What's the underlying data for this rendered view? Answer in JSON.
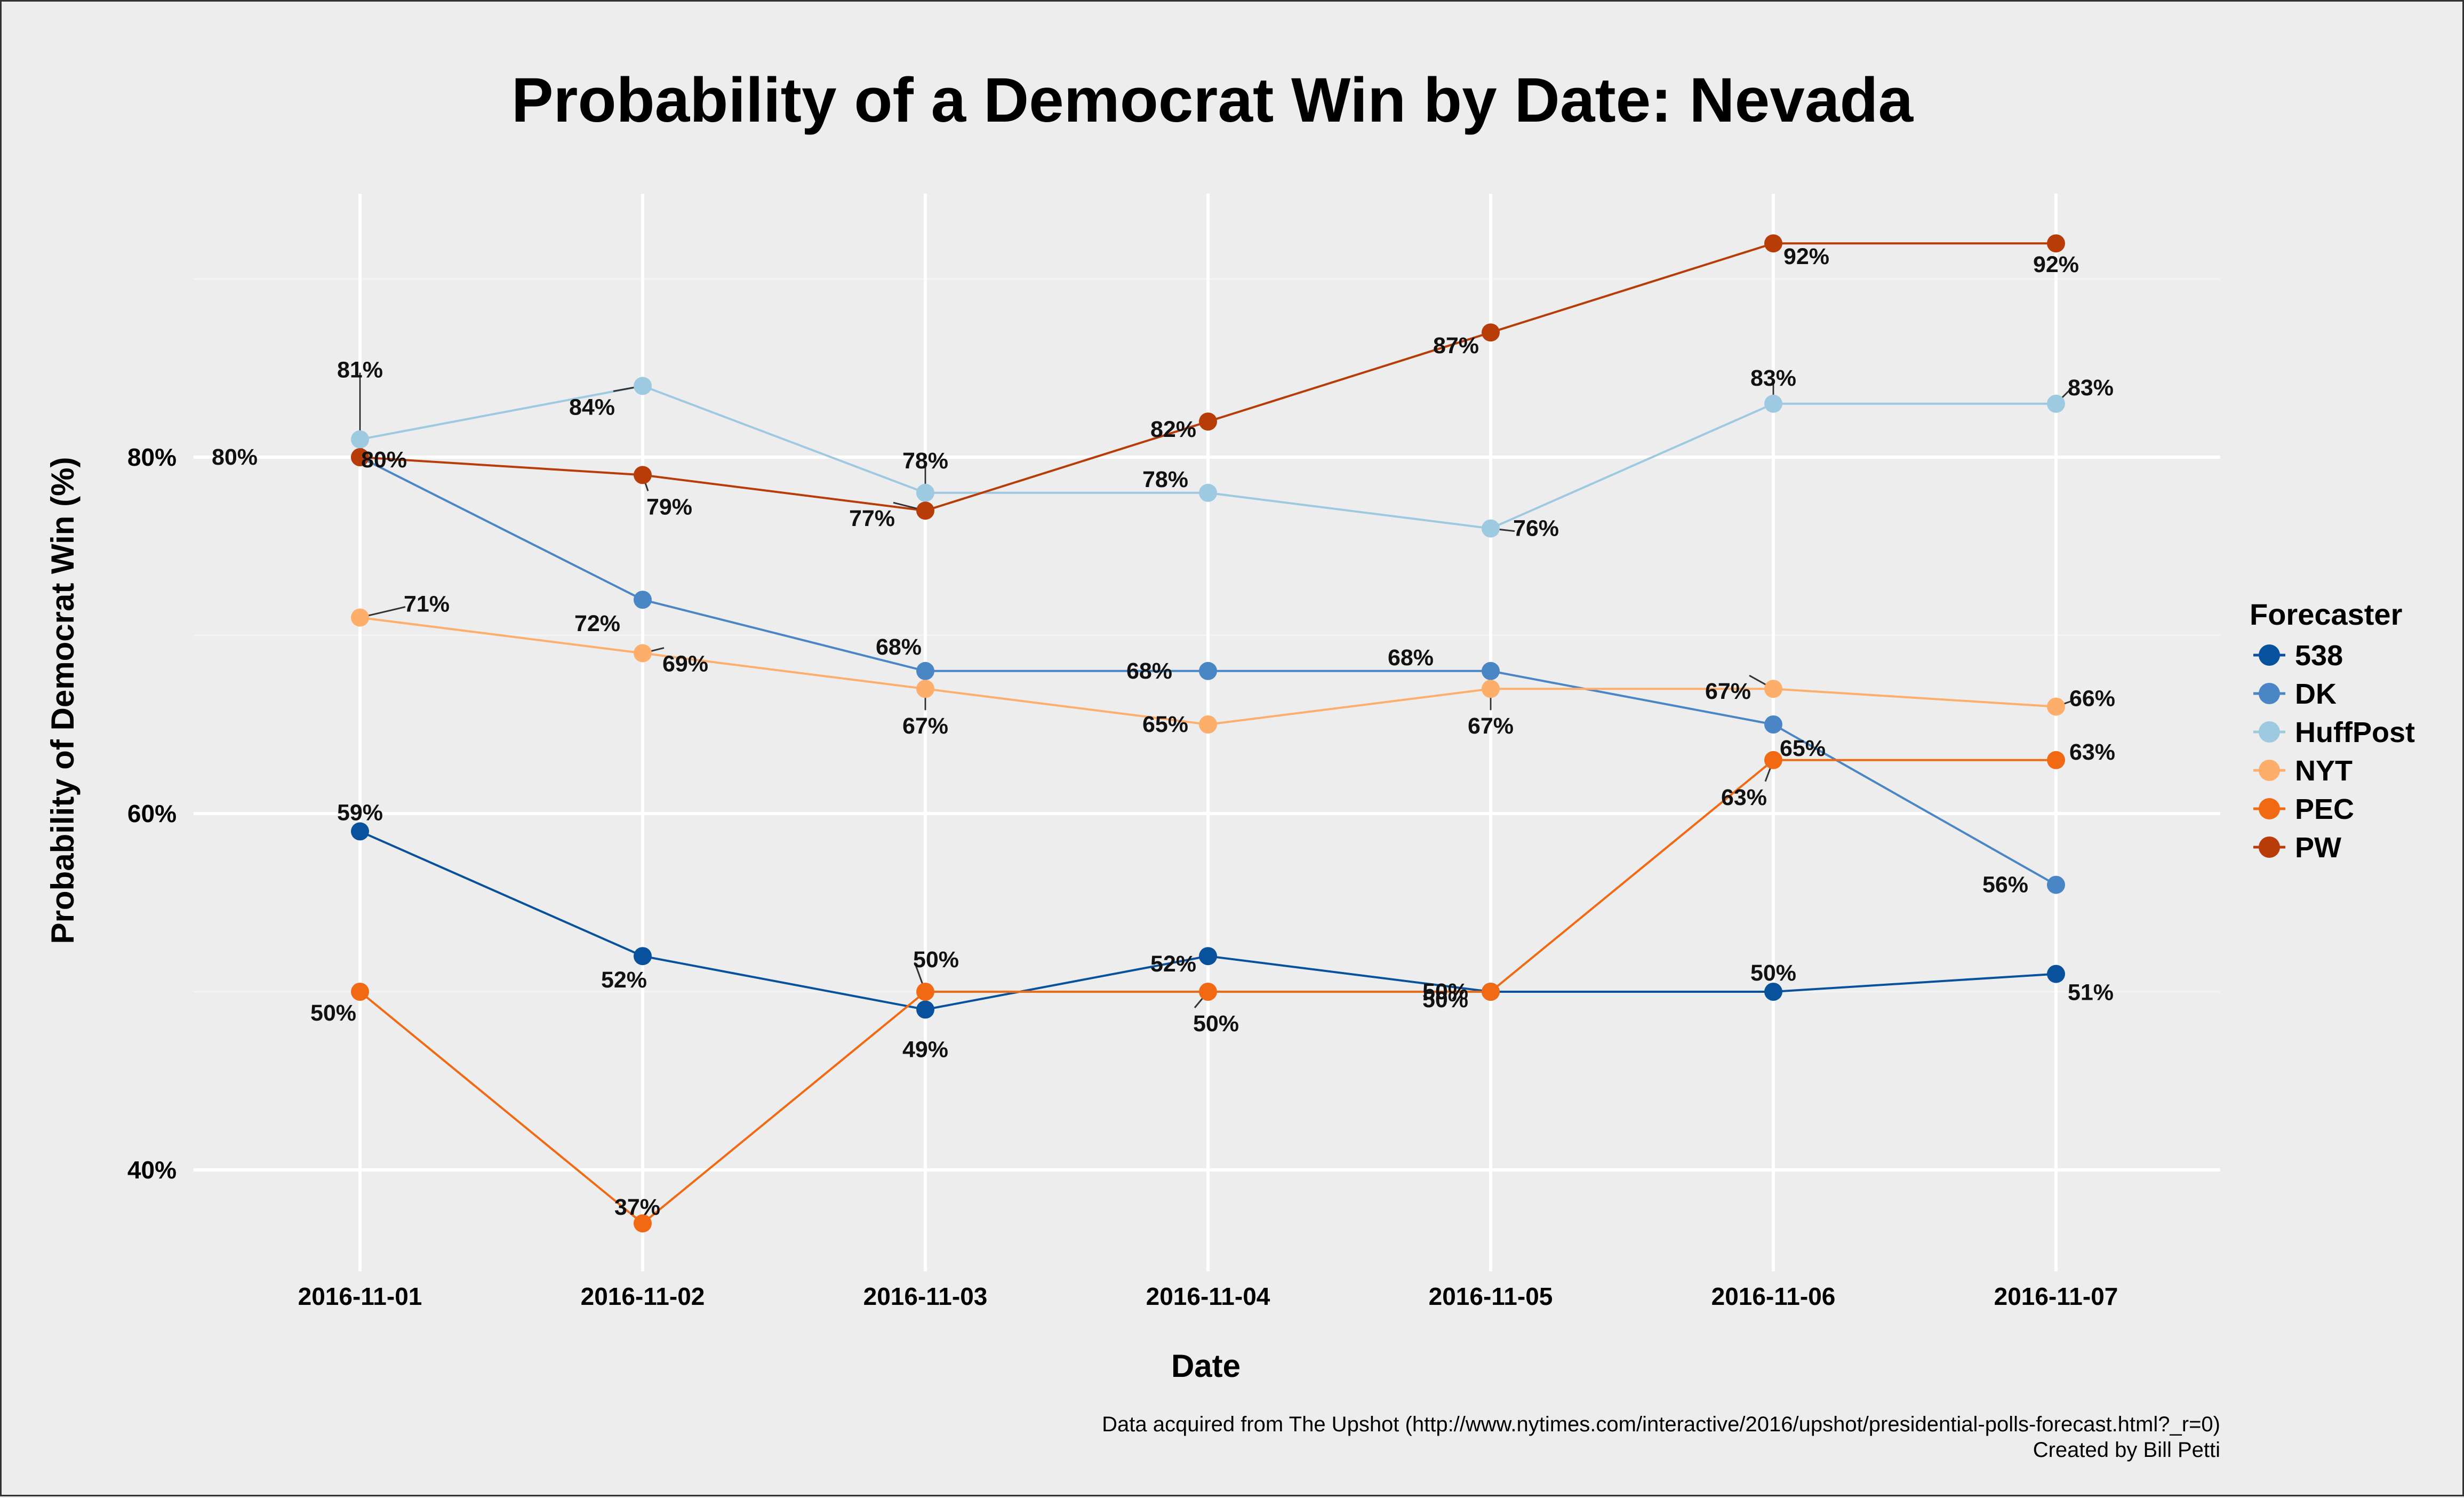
{
  "chart_data": {
    "type": "line",
    "title": "Probability of a Democrat Win by Date: Nevada",
    "xlabel": "Date",
    "ylabel": "Probability of Democrat Win (%)",
    "x": [
      "2016-11-01",
      "2016-11-02",
      "2016-11-03",
      "2016-11-04",
      "2016-11-05",
      "2016-11-06",
      "2016-11-07"
    ],
    "ylim": [
      35,
      95
    ],
    "y_ticks": [
      40,
      60,
      80
    ],
    "y_tick_labels": [
      "40%",
      "60%",
      "80%"
    ],
    "grid": true,
    "legend_title": "Forecaster",
    "legend_position": "right",
    "series": [
      {
        "name": "538",
        "color": "#08519c",
        "values": [
          59,
          52,
          49,
          52,
          50,
          50,
          51
        ],
        "labels": [
          "59%",
          "52%",
          "49%",
          "52%",
          "50%",
          "50%",
          "51%"
        ]
      },
      {
        "name": "DK",
        "color": "#4a86c5",
        "values": [
          80,
          72,
          68,
          68,
          68,
          65,
          56
        ],
        "labels": [
          "80%",
          "72%",
          "68%",
          "68%",
          "68%",
          "65%",
          "56%"
        ]
      },
      {
        "name": "HuffPost",
        "color": "#9ecae1",
        "values": [
          81,
          84,
          78,
          78,
          76,
          83,
          83
        ],
        "labels": [
          "81%",
          "84%",
          "78%",
          "78%",
          "76%",
          "83%",
          "83%"
        ]
      },
      {
        "name": "NYT",
        "color": "#fdae6b",
        "values": [
          71,
          69,
          67,
          65,
          67,
          67,
          66
        ],
        "labels": [
          "71%",
          "69%",
          "67%",
          "65%",
          "67%",
          "67%",
          "66%"
        ]
      },
      {
        "name": "PEC",
        "color": "#f16913",
        "values": [
          50,
          37,
          50,
          50,
          50,
          63,
          63
        ],
        "labels": [
          "50%",
          "37%",
          "50%",
          "50%",
          "50%",
          "63%",
          "63%"
        ]
      },
      {
        "name": "PW",
        "color": "#b83c08",
        "values": [
          80,
          79,
          77,
          82,
          87,
          92,
          92
        ],
        "labels": [
          "80%",
          "79%",
          "77%",
          "82%",
          "87%",
          "92%",
          "92%"
        ]
      }
    ]
  },
  "caption": {
    "line1": "Data acquired from The Upshot (http://www.nytimes.com/interactive/2016/upshot/presidential-polls-forecast.html?_r=0)",
    "line2": "Created by Bill Petti"
  }
}
